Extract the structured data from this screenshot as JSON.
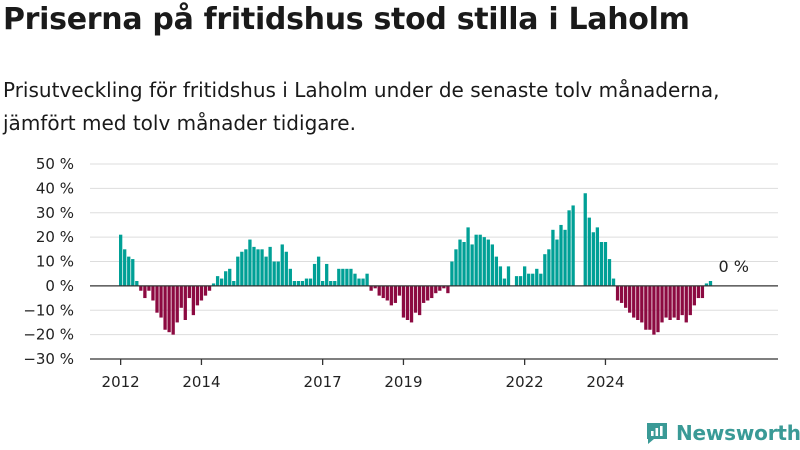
{
  "title": "Priserna på fritidshus stod stilla i Laholm",
  "subtitle": "Prisutveckling för fritidshus i Laholm under de senaste tolv månaderna, jämfört med tolv månader tidigare.",
  "brand": {
    "name": "Newsworthy",
    "color": "#3a9a96"
  },
  "colors": {
    "positive": "#00a096",
    "negative": "#8c0a41",
    "grid": "#dddddd",
    "baseline": "#333333"
  },
  "chart_data": {
    "type": "bar",
    "x_unit": "monthly",
    "start": "2012-01",
    "ylim": [
      -30,
      50
    ],
    "yticks": [
      -30,
      -20,
      -10,
      0,
      10,
      20,
      30,
      40,
      50
    ],
    "ytick_labels": [
      "−30 %",
      "−20 %",
      "−10 %",
      "0 %",
      "10 %",
      "20 %",
      "30 %",
      "40 %",
      "50 %"
    ],
    "xticks": [
      {
        "label": "2012",
        "index": 0
      },
      {
        "label": "2014",
        "index": 20
      },
      {
        "label": "2017",
        "index": 50
      },
      {
        "label": "2019",
        "index": 70
      },
      {
        "label": "2022",
        "index": 100
      },
      {
        "label": "2024",
        "index": 120
      }
    ],
    "values": [
      21,
      15,
      12,
      11,
      2,
      -2,
      -5,
      -2,
      -6,
      -11,
      -13,
      -18,
      -19,
      -20,
      -15,
      -9,
      -14,
      -5,
      -12,
      -8,
      -6,
      -4,
      -2,
      1,
      4,
      3,
      6,
      7,
      2,
      12,
      14,
      15,
      19,
      16,
      15,
      15,
      12,
      16,
      10,
      10,
      17,
      14,
      7,
      2,
      2,
      2,
      3,
      3,
      9,
      12,
      2,
      9,
      2,
      2,
      7,
      7,
      7,
      7,
      5,
      3,
      3,
      5,
      -2,
      -1,
      -4,
      -5,
      -6,
      -8,
      -7,
      -4,
      -13,
      -14,
      -15,
      -11,
      -12,
      -7,
      -6,
      -5,
      -3,
      -2,
      -1,
      -3,
      10,
      15,
      19,
      18,
      24,
      17,
      21,
      21,
      20,
      19,
      17,
      12,
      8,
      3,
      8,
      null,
      4,
      4,
      8,
      5,
      5,
      7,
      5,
      13,
      15,
      23,
      19,
      25,
      23,
      31,
      33,
      null,
      null,
      38,
      28,
      22,
      24,
      18,
      18,
      11,
      3,
      -6,
      -7,
      -9,
      -11,
      -13,
      -14,
      -15,
      -18,
      -18,
      -20,
      -19,
      -15,
      -13,
      -14,
      -13,
      -14,
      -12,
      -15,
      -12,
      -8,
      -5,
      -5,
      1,
      2
    ],
    "annotations": [
      {
        "text": "0 %",
        "index": 151
      }
    ]
  }
}
